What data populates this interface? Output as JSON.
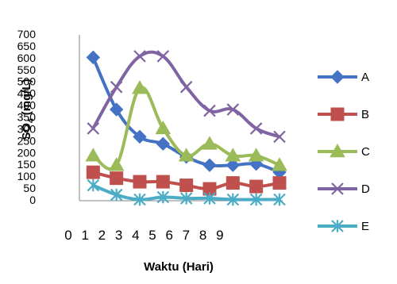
{
  "chart_data": {
    "type": "line",
    "title": "",
    "xlabel": "Waktu (Hari)",
    "ylabel": {
      "main": "SO",
      "sub": "4",
      "unit": " (mg/L)"
    },
    "x": [
      1,
      2,
      3,
      4,
      5,
      6,
      7,
      8,
      9
    ],
    "xticks": [
      0,
      1,
      2,
      3,
      4,
      5,
      6,
      7,
      8,
      9
    ],
    "yticks": [
      0,
      50,
      100,
      150,
      200,
      250,
      300,
      350,
      400,
      450,
      500,
      550,
      600,
      650,
      700
    ],
    "xlim": [
      0,
      9
    ],
    "ylim": [
      0,
      700
    ],
    "grid": false,
    "legend_position": "right",
    "smooth": true,
    "series": [
      {
        "name": "A",
        "color": "#4472C4",
        "marker": "diamond",
        "values": [
          605,
          385,
          270,
          240,
          185,
          150,
          150,
          155,
          120
        ]
      },
      {
        "name": "B",
        "color": "#C0504D",
        "marker": "square",
        "values": [
          120,
          95,
          80,
          80,
          65,
          50,
          75,
          60,
          75
        ]
      },
      {
        "name": "C",
        "color": "#9BBB59",
        "marker": "triangle",
        "values": [
          190,
          150,
          475,
          305,
          190,
          240,
          190,
          190,
          150
        ]
      },
      {
        "name": "D",
        "color": "#8064A2",
        "marker": "x",
        "values": [
          305,
          480,
          610,
          610,
          480,
          380,
          385,
          305,
          270
        ]
      },
      {
        "name": "E",
        "color": "#4BACC6",
        "marker": "star",
        "values": [
          65,
          25,
          5,
          15,
          10,
          10,
          5,
          5,
          5
        ]
      }
    ]
  }
}
